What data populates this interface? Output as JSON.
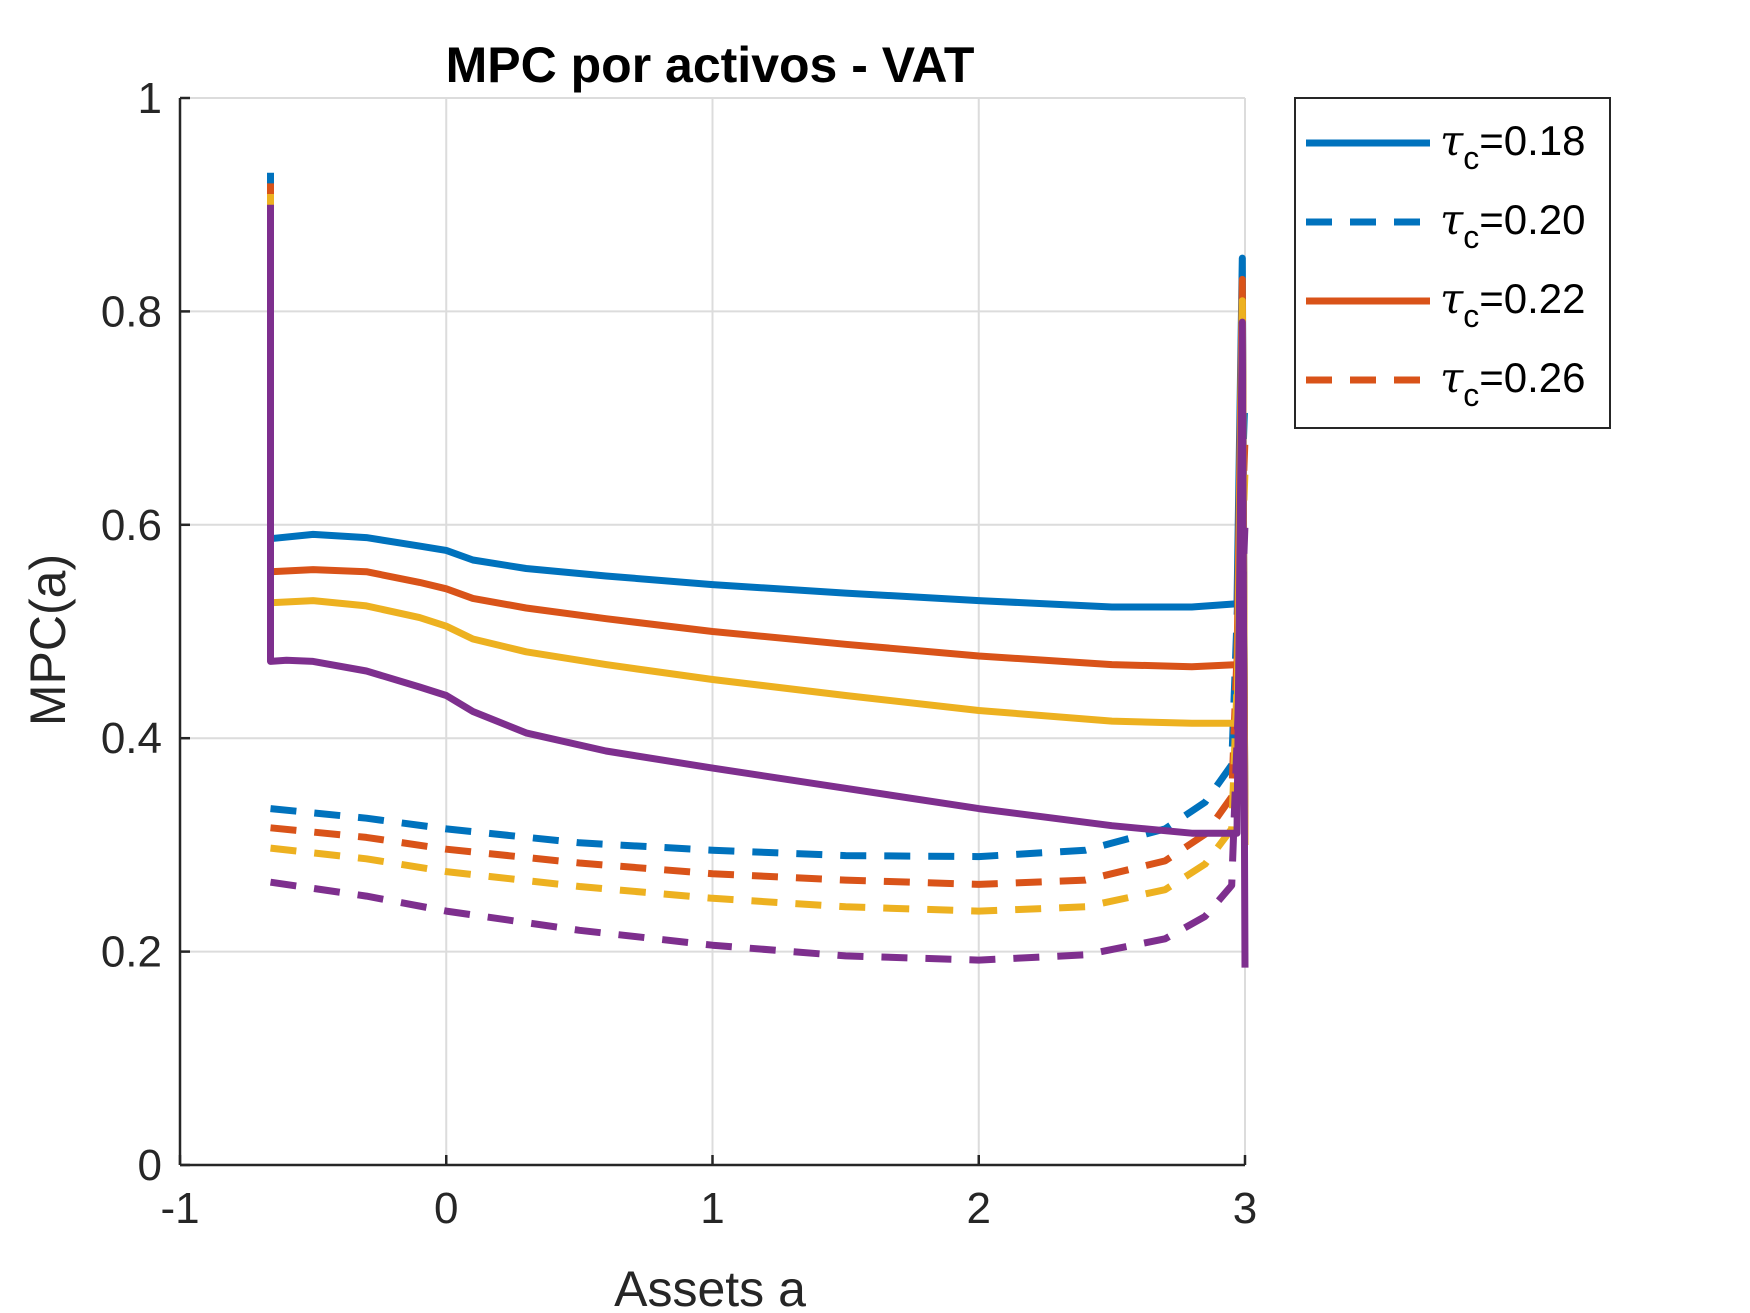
{
  "chart_data": {
    "type": "line",
    "title": "MPC por activos - VAT",
    "xlabel": "Assets a",
    "ylabel": "MPC(a)",
    "xlim": [
      -1,
      3
    ],
    "ylim": [
      0,
      1
    ],
    "xticks": [
      -1,
      0,
      1,
      2,
      3
    ],
    "xtick_labels": [
      "-1",
      "0",
      "1",
      "2",
      "3"
    ],
    "yticks": [
      0,
      0.2,
      0.4,
      0.6,
      0.8,
      1
    ],
    "ytick_labels": [
      "0",
      "0.2",
      "0.4",
      "0.6",
      "0.8",
      "1"
    ],
    "grid": true,
    "legend_position": "outside-top-right",
    "legend": [
      {
        "symbol": "τ",
        "subscript": "c",
        "value_text": "=0.18",
        "color": "#0072BD",
        "style": "solid"
      },
      {
        "symbol": "τ",
        "subscript": "c",
        "value_text": "=0.20",
        "color": "#0072BD",
        "style": "dashed"
      },
      {
        "symbol": "τ",
        "subscript": "c",
        "value_text": "=0.22",
        "color": "#D95319",
        "style": "solid"
      },
      {
        "symbol": "τ",
        "subscript": "c",
        "value_text": "=0.26",
        "color": "#D95319",
        "style": "dashed"
      }
    ],
    "series": [
      {
        "color": "#0072BD",
        "style": "solid",
        "x": [
          -0.66,
          -0.66,
          -0.5,
          -0.3,
          -0.1,
          0,
          0.1,
          0.3,
          0.6,
          1,
          1.5,
          2,
          2.5,
          2.8,
          2.97,
          2.99,
          3.0
        ],
        "y": [
          0.93,
          0.587,
          0.591,
          0.588,
          0.58,
          0.576,
          0.567,
          0.559,
          0.552,
          0.544,
          0.536,
          0.529,
          0.523,
          0.523,
          0.526,
          0.85,
          0.3
        ]
      },
      {
        "color": "#0072BD",
        "style": "dashed",
        "x": [
          -0.66,
          -0.3,
          0,
          0.5,
          1,
          1.5,
          2,
          2.4,
          2.7,
          2.85,
          2.95,
          3.0
        ],
        "y": [
          0.334,
          0.325,
          0.315,
          0.302,
          0.295,
          0.29,
          0.289,
          0.295,
          0.315,
          0.34,
          0.375,
          0.72
        ]
      },
      {
        "color": "#D95319",
        "style": "solid",
        "x": [
          -0.66,
          -0.66,
          -0.5,
          -0.3,
          -0.1,
          0,
          0.1,
          0.3,
          0.6,
          1,
          1.5,
          2,
          2.5,
          2.8,
          2.97,
          2.99,
          3.0
        ],
        "y": [
          0.92,
          0.556,
          0.558,
          0.556,
          0.546,
          0.54,
          0.531,
          0.522,
          0.512,
          0.5,
          0.488,
          0.477,
          0.469,
          0.467,
          0.469,
          0.83,
          0.3
        ]
      },
      {
        "color": "#D95319",
        "style": "dashed",
        "x": [
          -0.66,
          -0.3,
          0,
          0.5,
          1,
          1.5,
          2,
          2.4,
          2.7,
          2.85,
          2.95,
          3.0
        ],
        "y": [
          0.316,
          0.307,
          0.296,
          0.283,
          0.273,
          0.267,
          0.263,
          0.267,
          0.285,
          0.31,
          0.345,
          0.68
        ]
      },
      {
        "color": "#EDB120",
        "style": "solid",
        "x": [
          -0.66,
          -0.66,
          -0.5,
          -0.3,
          -0.1,
          0,
          0.1,
          0.3,
          0.6,
          1,
          1.5,
          2,
          2.5,
          2.8,
          2.97,
          2.99,
          3.0
        ],
        "y": [
          0.91,
          0.527,
          0.529,
          0.524,
          0.513,
          0.505,
          0.493,
          0.481,
          0.469,
          0.455,
          0.44,
          0.426,
          0.416,
          0.414,
          0.414,
          0.81,
          0.3
        ]
      },
      {
        "color": "#EDB120",
        "style": "dashed",
        "x": [
          -0.66,
          -0.3,
          0,
          0.5,
          1,
          1.5,
          2,
          2.4,
          2.7,
          2.85,
          2.95,
          3.0
        ],
        "y": [
          0.297,
          0.287,
          0.275,
          0.261,
          0.25,
          0.242,
          0.238,
          0.242,
          0.258,
          0.282,
          0.315,
          0.65
        ]
      },
      {
        "color": "#7E2F8E",
        "style": "solid",
        "x": [
          -0.66,
          -0.66,
          -0.6,
          -0.5,
          -0.3,
          -0.1,
          0,
          0.1,
          0.3,
          0.6,
          1,
          1.5,
          2,
          2.5,
          2.8,
          2.97,
          2.99,
          3.0
        ],
        "y": [
          0.9,
          0.472,
          0.473,
          0.472,
          0.463,
          0.448,
          0.44,
          0.425,
          0.405,
          0.388,
          0.372,
          0.353,
          0.334,
          0.318,
          0.311,
          0.311,
          0.79,
          0.185
        ]
      },
      {
        "color": "#7E2F8E",
        "style": "dashed",
        "x": [
          -0.66,
          -0.3,
          0,
          0.5,
          1,
          1.5,
          2,
          2.4,
          2.7,
          2.85,
          2.95,
          3.0
        ],
        "y": [
          0.265,
          0.252,
          0.238,
          0.22,
          0.206,
          0.196,
          0.192,
          0.197,
          0.212,
          0.233,
          0.262,
          0.6
        ]
      }
    ]
  }
}
